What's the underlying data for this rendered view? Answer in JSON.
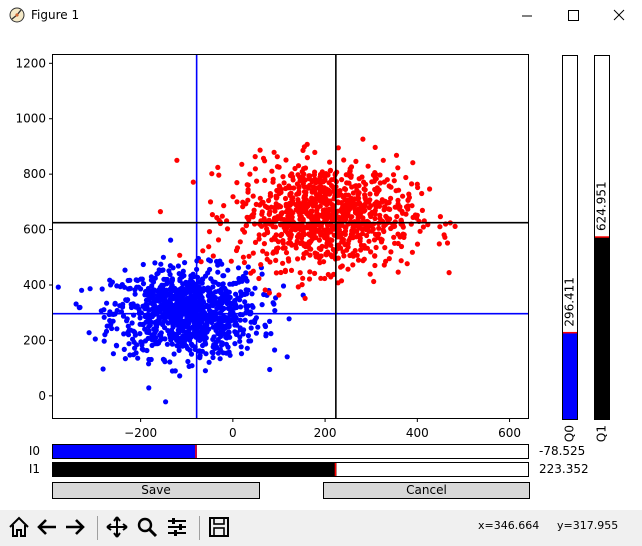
{
  "window": {
    "title": "Figure 1"
  },
  "chart_data": {
    "type": "scatter",
    "xlim": [
      -390,
      640
    ],
    "ylim": [
      -80,
      1230
    ],
    "xticks": [
      -200,
      0,
      200,
      400,
      600
    ],
    "yticks": [
      0,
      200,
      400,
      600,
      800,
      1000,
      1200
    ],
    "xtick_labels": [
      "−200",
      "0",
      "200",
      "400",
      "600"
    ],
    "ytick_labels": [
      "0",
      "200",
      "400",
      "600",
      "800",
      "1000",
      "1200"
    ],
    "series": [
      {
        "color": "#0000ff",
        "center": [
          -100,
          300
        ],
        "spread": [
          80,
          80
        ],
        "count": 1000
      },
      {
        "color": "#ff0000",
        "center": [
          200,
          650
        ],
        "spread": [
          95,
          95
        ],
        "count": 1000
      }
    ],
    "crosshair_blue": {
      "x": -78.525,
      "y": 296.411,
      "color": "#0000ff"
    },
    "crosshair_black": {
      "x": 223.352,
      "y": 624.951,
      "color": "#000000"
    },
    "grid": false,
    "legend": "none"
  },
  "vbars": [
    {
      "label": "Q0",
      "value": 296.411,
      "value_text": "296.411",
      "fill": "#0000ff",
      "max": 1250
    },
    {
      "label": "Q1",
      "value": 624.951,
      "value_text": "624.951",
      "fill": "#000000",
      "max": 1250
    }
  ],
  "hbars": [
    {
      "label": "I0",
      "value": -78.525,
      "value_text": "-78.525",
      "fill": "#0000ff",
      "min": -390,
      "max": 640
    },
    {
      "label": "I1",
      "value": 223.352,
      "value_text": "223.352",
      "fill": "#000000",
      "min": -390,
      "max": 640
    }
  ],
  "buttons": {
    "save": "Save",
    "cancel": "Cancel"
  },
  "status": {
    "x": "x=346.664",
    "y": "y=317.955"
  },
  "toolbar": [
    "home-icon",
    "back-icon",
    "forward-icon",
    "pan-icon",
    "zoom-icon",
    "configure-subplots-icon",
    "save-icon"
  ]
}
